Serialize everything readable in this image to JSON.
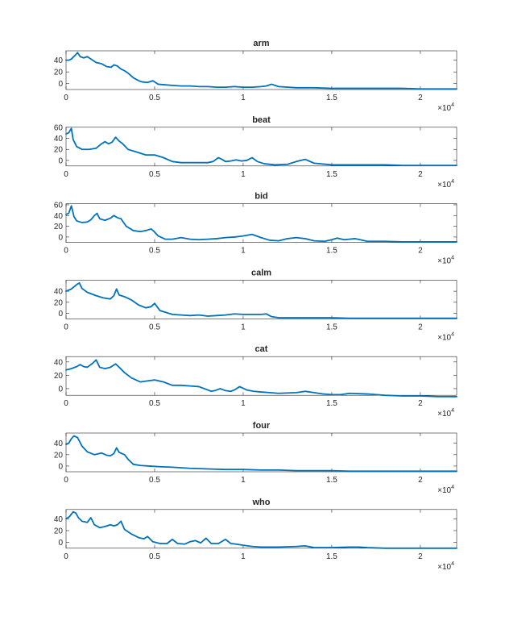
{
  "figure": {
    "background": "#ffffff"
  },
  "style": {
    "line_color": "#0072BD",
    "axis_color": "#262626"
  },
  "chart_data": [
    {
      "type": "line",
      "title": "arm",
      "xlim": [
        0,
        22050
      ],
      "ylim": [
        -10,
        56
      ],
      "yticks": [
        0,
        20,
        40
      ],
      "xticks": [
        0,
        5000,
        10000,
        15000,
        20000
      ],
      "xtick_labels": [
        "0",
        "0.5",
        "1",
        "1.5",
        "2"
      ],
      "x_exponent": "×10^4",
      "series": [
        {
          "x": [
            0,
            150,
            300,
            500,
            650,
            800,
            1000,
            1200,
            1400,
            1700,
            2000,
            2300,
            2550,
            2700,
            2900,
            3100,
            3300,
            3500,
            3800,
            4100,
            4300,
            4600,
            4900,
            5200,
            5600,
            6000,
            6500,
            7000,
            7500,
            8000,
            8500,
            9000,
            9500,
            10000,
            10500,
            11000,
            11300,
            11600,
            12000,
            13000,
            14000,
            15000,
            16000,
            17000,
            18000,
            19000,
            20000,
            21000,
            22050
          ],
          "y": [
            40,
            40,
            42,
            48,
            53,
            46,
            44,
            46,
            42,
            36,
            34,
            29,
            28,
            32,
            30,
            25,
            22,
            18,
            10,
            5,
            3,
            2,
            5,
            -1,
            -2,
            -3,
            -4,
            -4,
            -5,
            -5,
            -6,
            -6,
            -5,
            -6,
            -6,
            -5,
            -4,
            -1,
            -5,
            -7,
            -7,
            -8,
            -8,
            -8,
            -8,
            -8,
            -9,
            -9,
            -9
          ]
        }
      ]
    },
    {
      "type": "line",
      "title": "beat",
      "xlim": [
        0,
        22050
      ],
      "ylim": [
        -10,
        60
      ],
      "yticks": [
        0,
        20,
        40,
        60
      ],
      "xticks": [
        0,
        5000,
        10000,
        15000,
        20000
      ],
      "xtick_labels": [
        "0",
        "0.5",
        "1",
        "1.5",
        "2"
      ],
      "x_exponent": "×10^4",
      "series": [
        {
          "x": [
            0,
            150,
            300,
            400,
            600,
            900,
            1300,
            1700,
            2000,
            2200,
            2400,
            2600,
            2800,
            3000,
            3200,
            3500,
            4000,
            4500,
            5000,
            5500,
            6000,
            6500,
            7000,
            7500,
            8000,
            8300,
            8600,
            8800,
            9000,
            9300,
            9600,
            9900,
            10200,
            10500,
            10800,
            11200,
            11800,
            12500,
            13000,
            13500,
            14000,
            15000,
            16000,
            17000,
            18000,
            19000,
            20000,
            21000,
            22050
          ],
          "y": [
            48,
            50,
            58,
            38,
            25,
            20,
            20,
            22,
            30,
            34,
            30,
            33,
            42,
            35,
            30,
            20,
            15,
            10,
            10,
            5,
            -2,
            -4,
            -4,
            -4,
            -4,
            -2,
            5,
            2,
            -2,
            -1,
            1,
            -1,
            0,
            5,
            -2,
            -6,
            -8,
            -7,
            -2,
            2,
            -5,
            -8,
            -8,
            -8,
            -8,
            -9,
            -9,
            -9,
            -9
          ]
        }
      ]
    },
    {
      "type": "line",
      "title": "bid",
      "xlim": [
        0,
        22050
      ],
      "ylim": [
        -10,
        62
      ],
      "yticks": [
        0,
        20,
        40,
        60
      ],
      "xticks": [
        0,
        5000,
        10000,
        15000,
        20000
      ],
      "xtick_labels": [
        "0",
        "0.5",
        "1",
        "1.5",
        "2"
      ],
      "x_exponent": "×10^4",
      "series": [
        {
          "x": [
            0,
            150,
            300,
            450,
            600,
            900,
            1200,
            1400,
            1600,
            1750,
            1900,
            2200,
            2500,
            2700,
            2900,
            3100,
            3400,
            3800,
            4200,
            4500,
            4800,
            4950,
            5200,
            5600,
            6000,
            6500,
            7000,
            7500,
            8000,
            8500,
            9000,
            9500,
            10000,
            10500,
            11000,
            11500,
            12000,
            12500,
            13000,
            13500,
            14000,
            14600,
            15000,
            15300,
            15700,
            16000,
            16300,
            16600,
            17000,
            18000,
            19000,
            20000,
            21000,
            22050
          ],
          "y": [
            42,
            44,
            58,
            38,
            30,
            27,
            28,
            32,
            40,
            44,
            34,
            31,
            35,
            40,
            36,
            34,
            20,
            12,
            10,
            12,
            15,
            11,
            2,
            -4,
            -4,
            -1,
            -4,
            -5,
            -4,
            -3,
            -1,
            0,
            2,
            5,
            -1,
            -6,
            -7,
            -3,
            -1,
            -3,
            -7,
            -8,
            -5,
            -2,
            -5,
            -4,
            -3,
            -5,
            -8,
            -8,
            -9,
            -9,
            -9,
            -9
          ]
        }
      ]
    },
    {
      "type": "line",
      "title": "calm",
      "xlim": [
        0,
        22050
      ],
      "ylim": [
        -10,
        60
      ],
      "yticks": [
        0,
        20,
        40
      ],
      "xticks": [
        0,
        5000,
        10000,
        15000,
        20000
      ],
      "xtick_labels": [
        "0",
        "0.5",
        "1",
        "1.5",
        "2"
      ],
      "x_exponent": "×10^4",
      "series": [
        {
          "x": [
            0,
            300,
            600,
            750,
            900,
            1200,
            1700,
            2100,
            2500,
            2700,
            2850,
            3000,
            3300,
            3700,
            4100,
            4500,
            4800,
            5000,
            5300,
            6000,
            6500,
            7000,
            7500,
            8000,
            8500,
            9000,
            9500,
            10000,
            10500,
            11000,
            11300,
            11600,
            12000,
            13000,
            14000,
            15000,
            16000,
            17000,
            18000,
            19000,
            20000,
            21000,
            22050
          ],
          "y": [
            40,
            44,
            52,
            55,
            45,
            38,
            32,
            28,
            26,
            32,
            44,
            33,
            30,
            24,
            15,
            10,
            12,
            18,
            5,
            -2,
            -3,
            -4,
            -3,
            -5,
            -4,
            -3,
            -1,
            -2,
            -2,
            -2,
            -1,
            -6,
            -8,
            -8,
            -8,
            -8,
            -9,
            -9,
            -9,
            -9,
            -9,
            -9,
            -9
          ]
        }
      ]
    },
    {
      "type": "line",
      "title": "cat",
      "xlim": [
        0,
        22050
      ],
      "ylim": [
        -10,
        48
      ],
      "yticks": [
        0,
        20,
        40
      ],
      "xticks": [
        0,
        5000,
        10000,
        15000,
        20000
      ],
      "xtick_labels": [
        "0",
        "0.5",
        "1",
        "1.5",
        "2"
      ],
      "x_exponent": "×10^4",
      "series": [
        {
          "x": [
            0,
            300,
            600,
            800,
            1000,
            1200,
            1500,
            1700,
            1900,
            2200,
            2500,
            2800,
            3000,
            3300,
            3700,
            4200,
            4700,
            5000,
            5500,
            6000,
            6500,
            7000,
            7500,
            8000,
            8200,
            8400,
            8700,
            9000,
            9300,
            9500,
            9800,
            10200,
            10600,
            11000,
            11500,
            12000,
            13000,
            13500,
            14000,
            14500,
            15000,
            15500,
            16000,
            17000,
            18000,
            19000,
            20000,
            21000,
            22050
          ],
          "y": [
            28,
            30,
            33,
            36,
            33,
            32,
            38,
            43,
            32,
            30,
            32,
            37,
            32,
            24,
            16,
            10,
            12,
            13,
            10,
            5,
            5,
            4,
            3,
            -2,
            -4,
            -3,
            0,
            -3,
            -4,
            -2,
            3,
            -2,
            -4,
            -5,
            -6,
            -7,
            -6,
            -4,
            -6,
            -8,
            -9,
            -9,
            -7,
            -8,
            -10,
            -11,
            -11,
            -12,
            -12
          ]
        }
      ]
    },
    {
      "type": "line",
      "title": "four",
      "xlim": [
        0,
        22050
      ],
      "ylim": [
        -10,
        58
      ],
      "yticks": [
        0,
        20,
        40
      ],
      "xticks": [
        0,
        5000,
        10000,
        15000,
        20000
      ],
      "xtick_labels": [
        "0",
        "0.5",
        "1",
        "1.5",
        "2"
      ],
      "x_exponent": "×10^4",
      "series": [
        {
          "x": [
            0,
            150,
            300,
            450,
            650,
            900,
            1200,
            1600,
            2000,
            2300,
            2500,
            2700,
            2850,
            3000,
            3300,
            3500,
            3800,
            4200,
            4700,
            5200,
            6000,
            7000,
            8000,
            9000,
            10000,
            11000,
            12000,
            13000,
            14000,
            15000,
            16000,
            17000,
            18000,
            19000,
            20000,
            21000,
            22050
          ],
          "y": [
            38,
            40,
            48,
            53,
            50,
            35,
            25,
            20,
            23,
            19,
            18,
            22,
            32,
            24,
            20,
            12,
            3,
            1,
            0,
            -1,
            -2,
            -4,
            -5,
            -6,
            -6,
            -7,
            -7,
            -8,
            -8,
            -8,
            -9,
            -9,
            -9,
            -9,
            -9,
            -9,
            -9
          ]
        }
      ]
    },
    {
      "type": "line",
      "title": "who",
      "xlim": [
        0,
        22050
      ],
      "ylim": [
        -10,
        56
      ],
      "yticks": [
        0,
        20,
        40
      ],
      "xticks": [
        0,
        5000,
        10000,
        15000,
        20000
      ],
      "xtick_labels": [
        "0",
        "0.5",
        "1",
        "1.5",
        "2"
      ],
      "x_exponent": "×10^4",
      "series": [
        {
          "x": [
            0,
            200,
            400,
            550,
            700,
            900,
            1200,
            1400,
            1600,
            1900,
            2200,
            2500,
            2700,
            2900,
            3100,
            3300,
            3700,
            4100,
            4400,
            4600,
            4900,
            5300,
            5700,
            6000,
            6300,
            6700,
            7000,
            7300,
            7600,
            7900,
            8200,
            8600,
            9000,
            9300,
            9600,
            10000,
            10500,
            11000,
            12000,
            13000,
            13500,
            14000,
            15000,
            16000,
            16500,
            17000,
            18000,
            19000,
            20000,
            21000,
            22050
          ],
          "y": [
            40,
            44,
            52,
            50,
            42,
            36,
            34,
            42,
            30,
            25,
            27,
            30,
            28,
            30,
            36,
            22,
            14,
            8,
            6,
            10,
            1,
            -2,
            -2,
            5,
            -2,
            -3,
            1,
            3,
            -1,
            7,
            -2,
            -2,
            5,
            -2,
            -3,
            -5,
            -7,
            -8,
            -8,
            -7,
            -6,
            -9,
            -9,
            -8,
            -8,
            -9,
            -10,
            -10,
            -10,
            -10,
            -10
          ]
        }
      ]
    }
  ]
}
